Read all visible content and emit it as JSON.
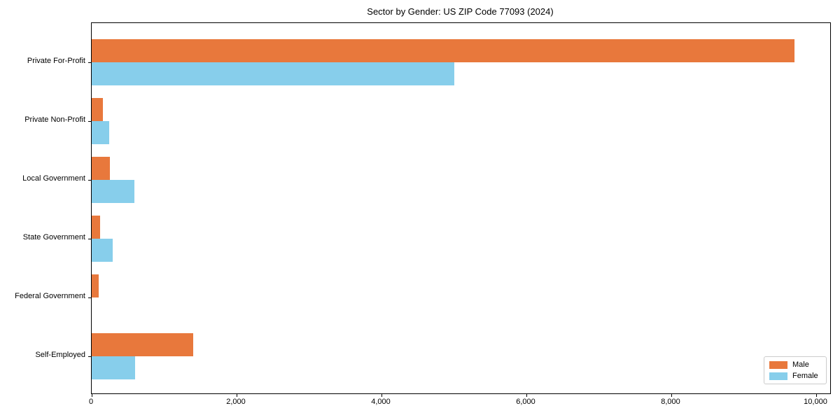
{
  "chart_data": {
    "type": "bar",
    "orientation": "horizontal",
    "title": "Sector by Gender: US ZIP Code 77093 (2024)",
    "categories": [
      "Private For-Profit",
      "Private Non-Profit",
      "Local Government",
      "State Government",
      "Federal Government",
      "Self-Employed"
    ],
    "series": [
      {
        "name": "Male",
        "color": "#e8783c",
        "values": [
          9700,
          150,
          250,
          120,
          100,
          1400
        ]
      },
      {
        "name": "Female",
        "color": "#87ceeb",
        "values": [
          5000,
          240,
          590,
          290,
          0,
          600
        ]
      }
    ],
    "xlim": [
      0,
      10000
    ],
    "xticks": [
      0,
      2000,
      4000,
      6000,
      8000,
      10000
    ],
    "xtick_labels": [
      "0",
      "2,000",
      "4,000",
      "6,000",
      "8,000",
      "10,000"
    ],
    "grid": false,
    "legend": {
      "position": "lower right",
      "entries": [
        "Male",
        "Female"
      ]
    },
    "colors": {
      "background": "#ffffff",
      "spine": "#000000",
      "text": "#000000"
    }
  }
}
